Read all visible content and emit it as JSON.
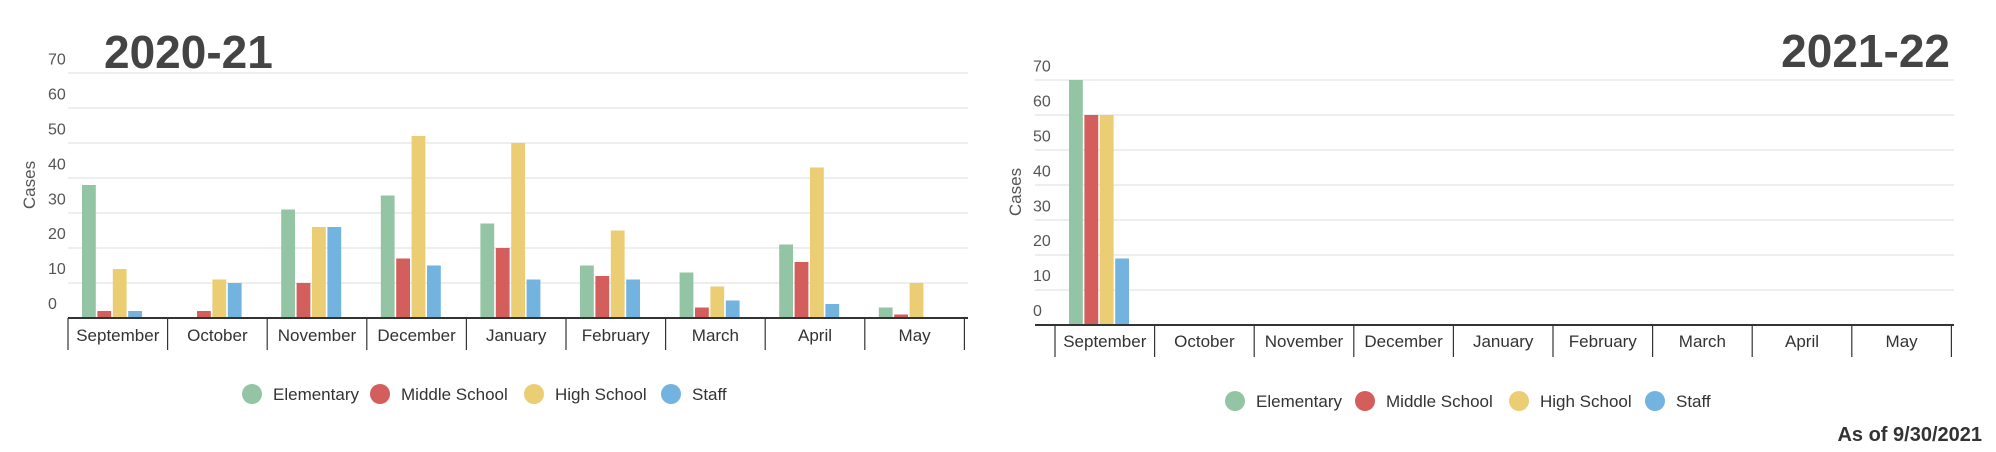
{
  "as_of": "As of 9/30/2021",
  "colors": {
    "Elementary": "#93c4a4",
    "Middle School": "#d35e5b",
    "High School": "#ebcd74",
    "Staff": "#72b3e0"
  },
  "chart_data": [
    {
      "type": "bar",
      "title": "2020-21",
      "ylabel": "Cases",
      "xlabel": "",
      "ylim": [
        0,
        70
      ],
      "yticks": [
        0,
        10,
        20,
        30,
        40,
        50,
        60,
        70
      ],
      "grid": true,
      "legend_position": "bottom",
      "categories": [
        "September",
        "October",
        "November",
        "December",
        "January",
        "February",
        "March",
        "April",
        "May"
      ],
      "series": [
        {
          "name": "Elementary",
          "values": [
            38,
            0,
            31,
            35,
            27,
            15,
            13,
            21,
            3
          ]
        },
        {
          "name": "Middle School",
          "values": [
            2,
            2,
            10,
            17,
            20,
            12,
            3,
            16,
            1
          ]
        },
        {
          "name": "High School",
          "values": [
            14,
            11,
            26,
            52,
            50,
            25,
            9,
            43,
            10
          ]
        },
        {
          "name": "Staff",
          "values": [
            2,
            10,
            26,
            15,
            11,
            11,
            5,
            4,
            0
          ]
        }
      ]
    },
    {
      "type": "bar",
      "title": "2021-22",
      "ylabel": "Cases",
      "xlabel": "",
      "ylim": [
        0,
        70
      ],
      "yticks": [
        0,
        10,
        20,
        30,
        40,
        50,
        60,
        70
      ],
      "grid": true,
      "legend_position": "bottom",
      "categories": [
        "September",
        "October",
        "November",
        "December",
        "January",
        "February",
        "March",
        "April",
        "May"
      ],
      "series": [
        {
          "name": "Elementary",
          "values": [
            70,
            0,
            0,
            0,
            0,
            0,
            0,
            0,
            0
          ]
        },
        {
          "name": "Middle School",
          "values": [
            60,
            0,
            0,
            0,
            0,
            0,
            0,
            0,
            0
          ]
        },
        {
          "name": "High School",
          "values": [
            60,
            0,
            0,
            0,
            0,
            0,
            0,
            0,
            0
          ]
        },
        {
          "name": "Staff",
          "values": [
            19,
            0,
            0,
            0,
            0,
            0,
            0,
            0,
            0
          ]
        }
      ]
    }
  ]
}
